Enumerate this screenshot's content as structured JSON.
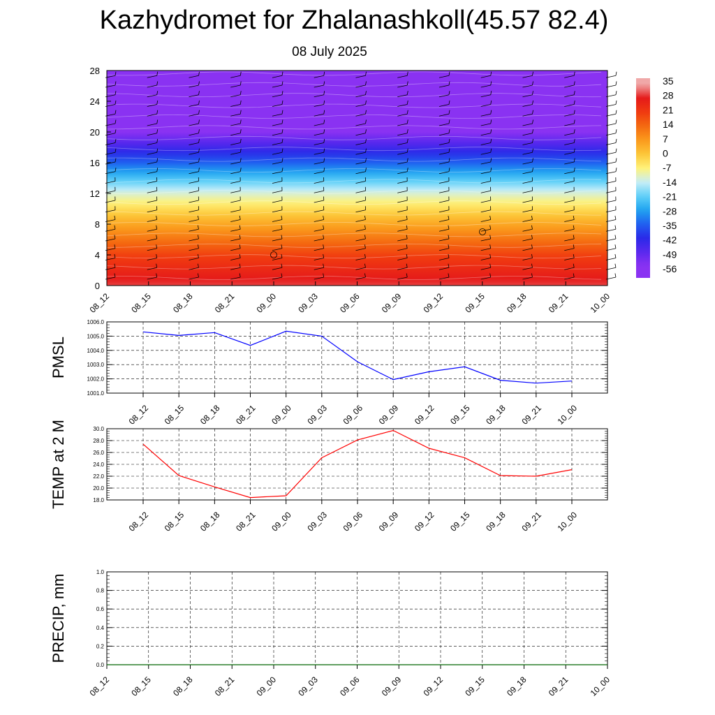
{
  "header": {
    "title": "Kazhydromet for Zhalanashkoll(45.57 82.4)",
    "date": "08 July 2025"
  },
  "colors": {
    "pmsl_line": "#0000ff",
    "temp_line": "#ff0000",
    "precip_line": "#006400",
    "colorbar": [
      "#f0a0a0",
      "#e01010",
      "#f03010",
      "#f86010",
      "#fca020",
      "#fcd040",
      "#fff880",
      "#d0f0f8",
      "#60d0f8",
      "#20a0f0",
      "#2050f0",
      "#3020e0",
      "#8030f0"
    ]
  },
  "chart_data": [
    {
      "type": "heatmap",
      "title": "",
      "xlabel": "",
      "ylabel": "",
      "ylim": [
        0,
        28
      ],
      "y_ticks": [
        "0",
        "4",
        "8",
        "12",
        "16",
        "20",
        "24",
        "28"
      ],
      "x_ticks": [
        "08_12",
        "08_15",
        "08_18",
        "08_21",
        "09_00",
        "09_03",
        "09_06",
        "09_09",
        "09_12",
        "09_15",
        "09_18",
        "09_21",
        "10_00"
      ],
      "colorbar_labels": [
        "35",
        "28",
        "21",
        "14",
        "7",
        "0",
        "-7",
        "-14",
        "-21",
        "-28",
        "-35",
        "-42",
        "-49",
        "-56"
      ],
      "temperature_profile": {
        "height_km": [
          0,
          4,
          8,
          12,
          16,
          20,
          24,
          28
        ],
        "temp_c": [
          30,
          20,
          5,
          -12,
          -35,
          -56,
          -60,
          -57
        ]
      },
      "grid": false
    },
    {
      "type": "line",
      "title": "",
      "ylabel": "PMSL",
      "ylim": [
        1001.0,
        1006.0
      ],
      "y_ticks": [
        "1001.0",
        "1002.0",
        "1003.0",
        "1004.0",
        "1005.0",
        "1006.0"
      ],
      "categories": [
        "08_12",
        "08_15",
        "08_18",
        "08_21",
        "09_00",
        "09_03",
        "09_06",
        "09_09",
        "09_12",
        "09_15",
        "09_18",
        "09_21",
        "10_00"
      ],
      "series": [
        {
          "values": [
            1005.3,
            1005.05,
            1005.25,
            1004.35,
            1005.35,
            1005.0,
            1003.2,
            1001.95,
            1002.5,
            1002.85,
            1001.9,
            1001.7,
            1001.85
          ]
        }
      ],
      "grid": true
    },
    {
      "type": "line",
      "title": "",
      "ylabel": "TEMP at 2 M",
      "ylim": [
        18.0,
        30.0
      ],
      "y_ticks": [
        "18.0",
        "20.0",
        "22.0",
        "24.0",
        "26.0",
        "28.0",
        "30.0"
      ],
      "categories": [
        "08_12",
        "08_15",
        "08_18",
        "08_21",
        "09_00",
        "09_03",
        "09_06",
        "09_09",
        "09_12",
        "09_15",
        "09_18",
        "09_21",
        "10_00"
      ],
      "series": [
        {
          "values": [
            27.4,
            22.1,
            20.2,
            18.4,
            18.7,
            25.1,
            28.1,
            29.7,
            26.7,
            25.1,
            22.1,
            22.0,
            23.1
          ]
        }
      ],
      "grid": true
    },
    {
      "type": "line",
      "title": "",
      "ylabel": "PRECIP, mm",
      "ylim": [
        0.0,
        1.0
      ],
      "y_ticks": [
        "0.0",
        "0.2",
        "0.4",
        "0.6",
        "0.8",
        "1.0"
      ],
      "categories": [
        "08_12",
        "08_15",
        "08_18",
        "08_21",
        "09_00",
        "09_03",
        "09_06",
        "09_09",
        "09_12",
        "09_15",
        "09_18",
        "09_21",
        "10_00"
      ],
      "series": [
        {
          "values": [
            0,
            0,
            0,
            0,
            0,
            0,
            0,
            0,
            0,
            0,
            0,
            0,
            0
          ]
        }
      ],
      "grid": true
    }
  ]
}
